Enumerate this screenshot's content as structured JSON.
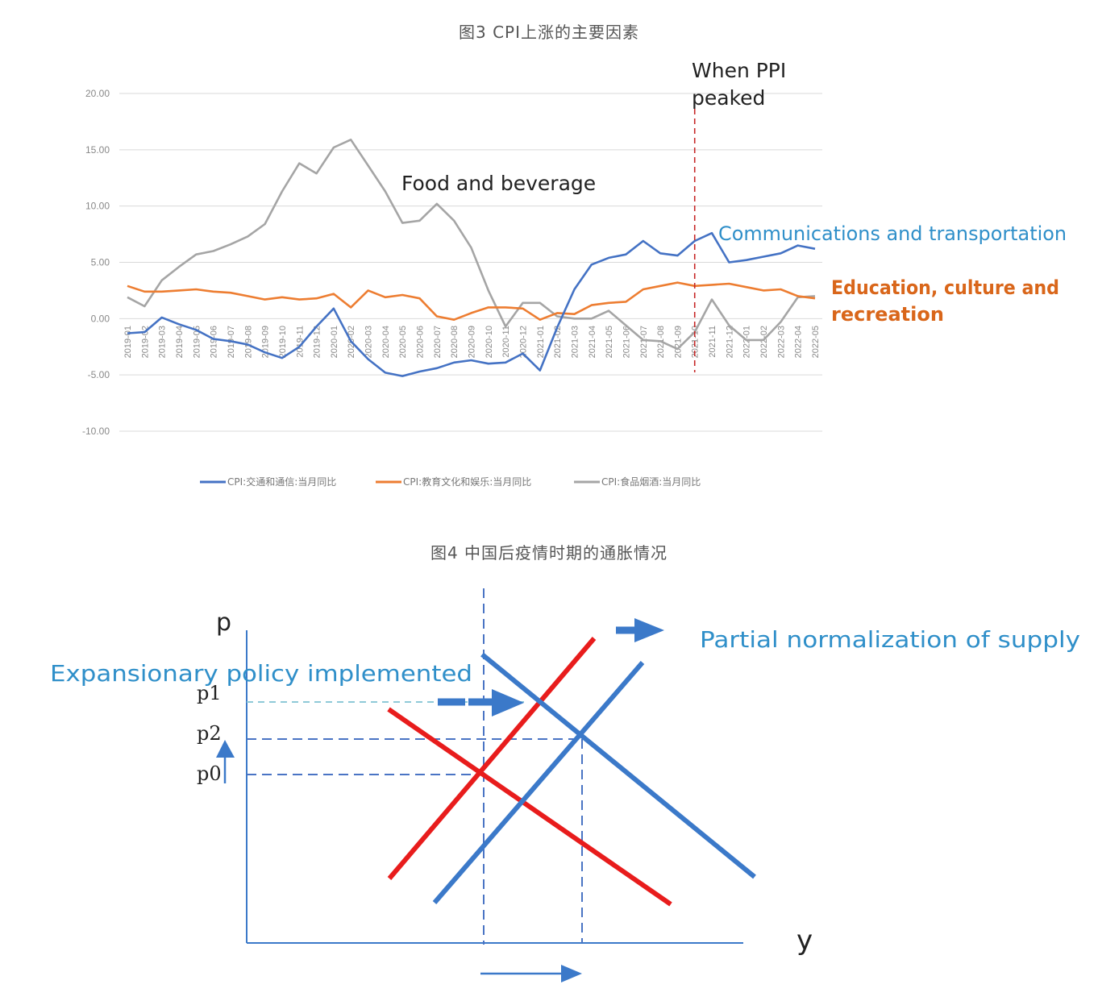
{
  "caption_fig3": "图3 CPI上涨的主要因素",
  "caption_fig4": "图4 中国后疫情时期的通胀情况",
  "chart_data": [
    {
      "type": "line",
      "title": "",
      "ylim": [
        -10,
        20
      ],
      "yticks": [
        "20.00",
        "15.00",
        "10.00",
        "5.00",
        "0.00",
        "-5.00",
        "-10.00"
      ],
      "grid": true,
      "legend_placement": "bottom",
      "x": [
        "2019-01",
        "2019-02",
        "2019-03",
        "2019-04",
        "2019-05",
        "2019-06",
        "2019-07",
        "2019-08",
        "2019-09",
        "2019-10",
        "2019-11",
        "2019-12",
        "2020-01",
        "2020-02",
        "2020-03",
        "2020-04",
        "2020-05",
        "2020-06",
        "2020-07",
        "2020-08",
        "2020-09",
        "2020-10",
        "2020-11",
        "2020-12",
        "2021-01",
        "2021-02",
        "2021-03",
        "2021-04",
        "2021-05",
        "2021-06",
        "2021-07",
        "2021-08",
        "2021-09",
        "2021-10",
        "2021-11",
        "2021-12",
        "2022-01",
        "2022-02",
        "2022-03",
        "2022-04",
        "2022-05"
      ],
      "series": [
        {
          "name": "CPI:交通和通信:当月同比",
          "color": "#4472c4",
          "values": [
            -1.3,
            -1.2,
            0.1,
            -0.5,
            -1.0,
            -1.8,
            -2.0,
            -2.3,
            -3.0,
            -3.5,
            -2.5,
            -0.7,
            0.9,
            -2.0,
            -3.6,
            -4.8,
            -5.1,
            -4.7,
            -4.4,
            -3.9,
            -3.7,
            -4.0,
            -3.9,
            -3.1,
            -4.6,
            -0.8,
            2.6,
            4.8,
            5.4,
            5.7,
            6.9,
            5.8,
            5.6,
            6.9,
            7.6,
            5.0,
            5.2,
            5.5,
            5.8,
            6.5,
            6.2
          ]
        },
        {
          "name": "CPI:教育文化和娱乐:当月同比",
          "color": "#ed7d31",
          "values": [
            2.9,
            2.4,
            2.4,
            2.5,
            2.6,
            2.4,
            2.3,
            2.0,
            1.7,
            1.9,
            1.7,
            1.8,
            2.2,
            1.0,
            2.5,
            1.9,
            2.1,
            1.8,
            0.2,
            -0.1,
            0.5,
            1.0,
            1.0,
            0.9,
            -0.1,
            0.5,
            0.4,
            1.2,
            1.4,
            1.5,
            2.6,
            2.9,
            3.2,
            2.9,
            3.0,
            3.1,
            2.8,
            2.5,
            2.6,
            2.0,
            1.8
          ]
        },
        {
          "name": "CPI:食品烟酒:当月同比",
          "color": "#a5a5a5",
          "values": [
            1.9,
            1.1,
            3.4,
            4.6,
            5.7,
            6.0,
            6.6,
            7.3,
            8.4,
            11.3,
            13.8,
            12.9,
            15.2,
            15.9,
            13.6,
            11.3,
            8.5,
            8.7,
            10.2,
            8.7,
            6.3,
            2.5,
            -0.7,
            1.4,
            1.4,
            0.2,
            0.0,
            0.0,
            0.7,
            -0.6,
            -1.9,
            -2.0,
            -2.7,
            -1.2,
            1.7,
            -0.6,
            -1.9,
            -1.9,
            -0.3,
            1.9,
            2.0
          ]
        }
      ],
      "annotations": {
        "ppi_peak": [
          "When PPI",
          "peaked"
        ],
        "ppi_peak_x": "2021-10",
        "food": "Food and beverage",
        "comm": "Communications and transportation",
        "edu": [
          "Education, culture and",
          "recreation"
        ]
      }
    },
    {
      "type": "diagram",
      "title": "",
      "axes": {
        "y_label": "p",
        "x_label": "y"
      },
      "price_levels": [
        "p1",
        "p2",
        "p0"
      ],
      "annotations": {
        "expansion": "Expansionary policy implemented",
        "supply": "Partial normalization of supply"
      },
      "colors": {
        "original_curves": "#e81c1c",
        "shifted_curves": "#3b79c9",
        "guides": "#4a74c4",
        "p1_guide": "#8fc9d8"
      }
    }
  ]
}
